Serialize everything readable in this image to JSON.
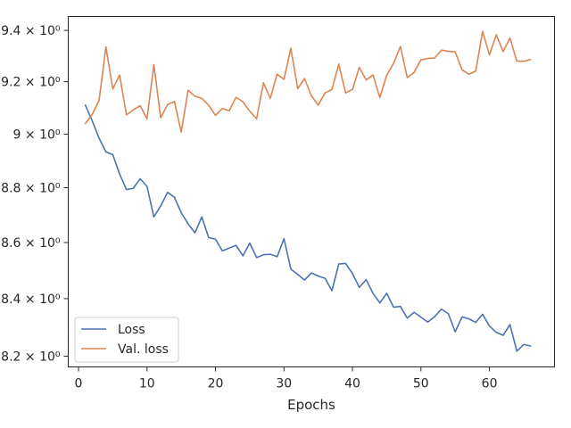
{
  "chart_data": {
    "type": "line",
    "title": "",
    "xlabel": "Epochs",
    "ylabel": "",
    "xlim": [
      -1.5,
      69.5
    ],
    "ylim": [
      8.163,
      9.455
    ],
    "y_scale": "log",
    "x_ticks": [
      {
        "value": 0,
        "label": "0"
      },
      {
        "value": 10,
        "label": "10"
      },
      {
        "value": 20,
        "label": "20"
      },
      {
        "value": 30,
        "label": "30"
      },
      {
        "value": 40,
        "label": "40"
      },
      {
        "value": 50,
        "label": "50"
      },
      {
        "value": 60,
        "label": "60"
      }
    ],
    "y_ticks": [
      {
        "value": 8.2,
        "label": "8.2 × 10⁰"
      },
      {
        "value": 8.4,
        "label": "8.4 × 10⁰"
      },
      {
        "value": 8.6,
        "label": "8.6 × 10⁰"
      },
      {
        "value": 8.8,
        "label": "8.8 × 10⁰"
      },
      {
        "value": 9.0,
        "label": "9 × 10⁰"
      },
      {
        "value": 9.2,
        "label": "9.2 × 10⁰"
      },
      {
        "value": 9.4,
        "label": "9.4 × 10⁰"
      }
    ],
    "grid": false,
    "legend_position": "lower-left",
    "x": [
      1,
      2,
      3,
      4,
      5,
      6,
      7,
      8,
      9,
      10,
      11,
      12,
      13,
      14,
      15,
      16,
      17,
      18,
      19,
      20,
      21,
      22,
      23,
      24,
      25,
      26,
      27,
      28,
      29,
      30,
      31,
      32,
      33,
      34,
      35,
      36,
      37,
      38,
      39,
      40,
      41,
      42,
      43,
      44,
      45,
      46,
      47,
      48,
      49,
      50,
      51,
      52,
      53,
      54,
      55,
      56,
      57,
      58,
      59,
      60,
      61,
      62,
      63,
      64,
      65,
      66
    ],
    "series": [
      {
        "name": "Loss",
        "color": "#4c72b0",
        "values": [
          9.11,
          9.05,
          8.985,
          8.933,
          8.923,
          8.851,
          8.793,
          8.798,
          8.833,
          8.805,
          8.693,
          8.733,
          8.783,
          8.765,
          8.708,
          8.668,
          8.635,
          8.693,
          8.618,
          8.612,
          8.57,
          8.58,
          8.59,
          8.552,
          8.598,
          8.546,
          8.556,
          8.558,
          8.549,
          8.614,
          8.505,
          8.486,
          8.466,
          8.491,
          8.48,
          8.472,
          8.428,
          8.523,
          8.525,
          8.489,
          8.44,
          8.467,
          8.419,
          8.385,
          8.419,
          8.37,
          8.373,
          8.332,
          8.352,
          8.335,
          8.318,
          8.337,
          8.363,
          8.347,
          8.284,
          8.336,
          8.329,
          8.317,
          8.345,
          8.304,
          8.282,
          8.272,
          8.309,
          8.217,
          8.24,
          8.235
        ]
      },
      {
        "name": "Val. loss",
        "color": "#dd8452",
        "values": [
          9.04,
          9.075,
          9.128,
          9.335,
          9.172,
          9.226,
          9.073,
          9.092,
          9.108,
          9.058,
          9.266,
          9.062,
          9.112,
          9.124,
          9.008,
          9.167,
          9.144,
          9.136,
          9.11,
          9.071,
          9.097,
          9.089,
          9.14,
          9.123,
          9.087,
          9.058,
          9.196,
          9.136,
          9.229,
          9.209,
          9.33,
          9.173,
          9.212,
          9.146,
          9.11,
          9.157,
          9.17,
          9.268,
          9.157,
          9.17,
          9.255,
          9.207,
          9.226,
          9.139,
          9.225,
          9.271,
          9.337,
          9.216,
          9.236,
          9.285,
          9.29,
          9.292,
          9.323,
          9.318,
          9.316,
          9.246,
          9.229,
          9.241,
          9.396,
          9.304,
          9.383,
          9.317,
          9.37,
          9.28,
          9.279,
          9.286
        ]
      }
    ]
  }
}
